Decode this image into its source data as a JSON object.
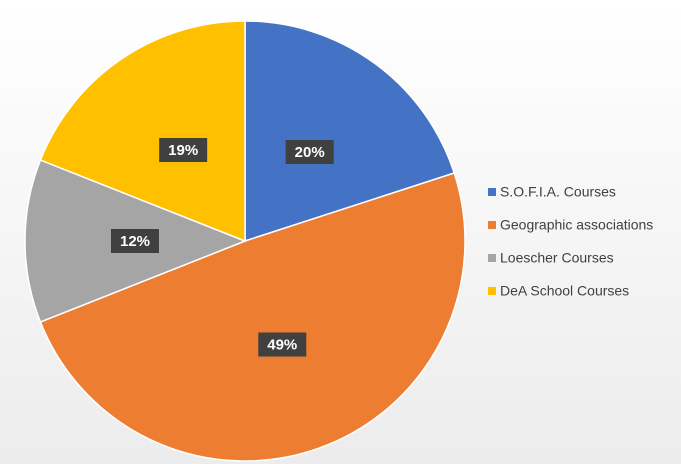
{
  "chart_data": {
    "type": "pie",
    "categories": [
      "S.O.F.I.A. Courses",
      "Geographic associations",
      "Loescher Courses",
      "DeA School Courses"
    ],
    "values": [
      20,
      49,
      12,
      19
    ],
    "value_labels": [
      "20%",
      "49%",
      "12%",
      "19%"
    ],
    "colors": [
      "#4472c4",
      "#ed7d31",
      "#a5a5a5",
      "#ffc000"
    ],
    "legend": "right"
  }
}
